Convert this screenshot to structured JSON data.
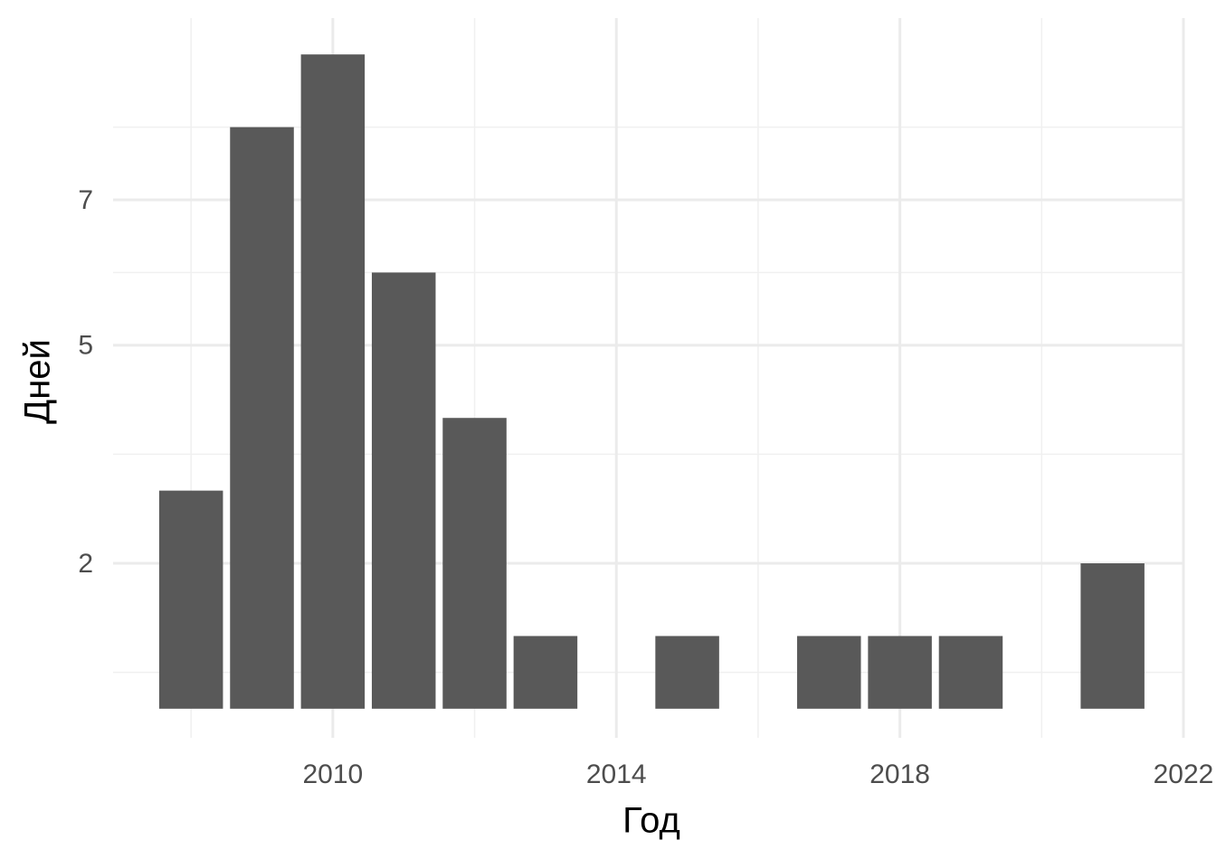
{
  "chart_data": {
    "type": "bar",
    "x": [
      2008,
      2009,
      2010,
      2011,
      2012,
      2013,
      2015,
      2017,
      2018,
      2019,
      2021
    ],
    "values": [
      3,
      8,
      9,
      6,
      4,
      1,
      1,
      1,
      1,
      1,
      2
    ],
    "color": "#595959",
    "x_label": "Год",
    "y_label": "Дней",
    "xlim": [
      2006.9,
      2022.0
    ],
    "xticks": [
      2010,
      2014,
      2018,
      2022
    ],
    "ylim": [
      -0.4,
      9.5
    ],
    "yticks": [
      2,
      5,
      7
    ],
    "grid": true
  }
}
